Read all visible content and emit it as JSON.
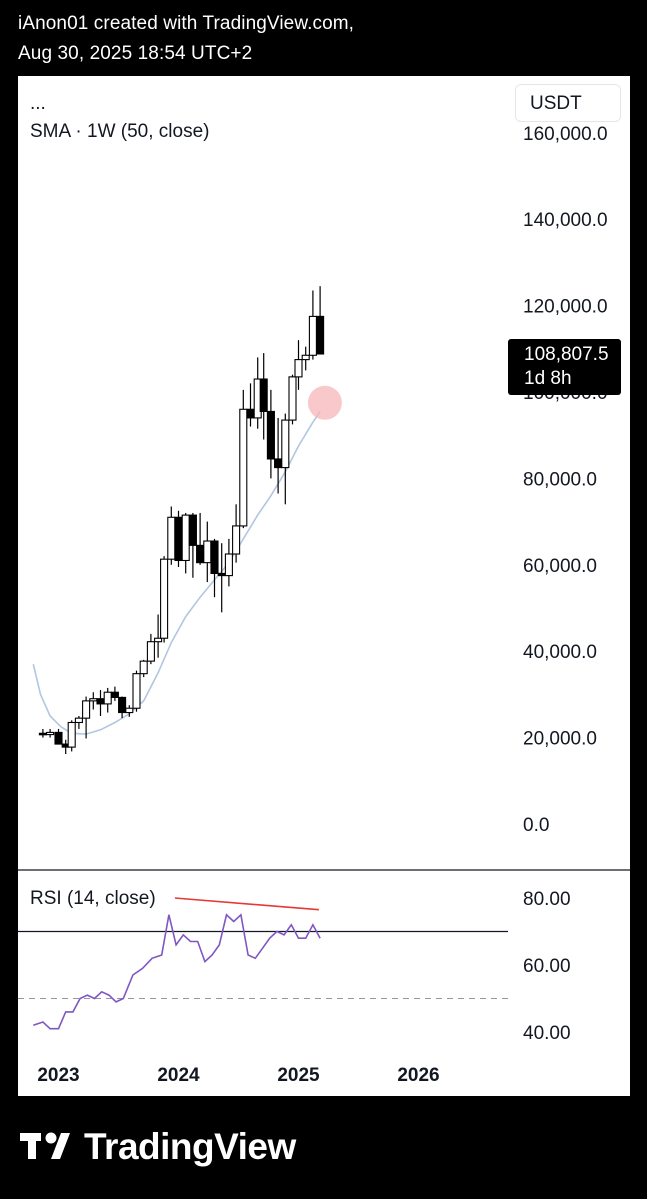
{
  "header": {
    "line1": "iAnon01 created with TradingView.com,",
    "line2": "Aug 30, 2025 18:54 UTC+2"
  },
  "legend": {
    "symbol": "...",
    "sma": "SMA · 1W (50, close)",
    "rsi": "RSI (14, close)"
  },
  "currency_button": "USDT",
  "price_tag": {
    "value": "108,807.5",
    "countdown": "1d 8h"
  },
  "footer": {
    "brand": "TradingView"
  },
  "colors": {
    "sma": "#b2c6e0",
    "rsi": "#7e57c2",
    "divergence": "#e53935",
    "marker": "#f7b6b8",
    "candle": "#000000"
  },
  "chart_data": [
    {
      "type": "candlestick",
      "interval": "1W",
      "xlabels": [
        "2023",
        "2024",
        "2025",
        "2026"
      ],
      "yticks": [
        "0.0",
        "20,000.0",
        "40,000.0",
        "60,000.0",
        "80,000.0",
        "100,000.0",
        "120,000.0",
        "140,000.0",
        "160,000.0"
      ],
      "ylim": [
        0,
        160000
      ],
      "last_price": 108807.5,
      "candles": [
        {
          "t": 2022.87,
          "o": 21000,
          "h": 22000,
          "l": 20000,
          "c": 20700
        },
        {
          "t": 2022.93,
          "o": 20700,
          "h": 22000,
          "l": 20000,
          "c": 21200
        },
        {
          "t": 2023.0,
          "o": 21200,
          "h": 22000,
          "l": 19000,
          "c": 18500
        },
        {
          "t": 2023.06,
          "o": 18500,
          "h": 19500,
          "l": 16200,
          "c": 17800
        },
        {
          "t": 2023.11,
          "o": 17800,
          "h": 24000,
          "l": 16800,
          "c": 23500
        },
        {
          "t": 2023.17,
          "o": 23500,
          "h": 25000,
          "l": 22000,
          "c": 24500
        },
        {
          "t": 2023.23,
          "o": 24500,
          "h": 29500,
          "l": 19800,
          "c": 28500
        },
        {
          "t": 2023.29,
          "o": 28500,
          "h": 30500,
          "l": 26500,
          "c": 29000
        },
        {
          "t": 2023.35,
          "o": 29000,
          "h": 31000,
          "l": 25000,
          "c": 27800
        },
        {
          "t": 2023.41,
          "o": 27800,
          "h": 31500,
          "l": 25800,
          "c": 30500
        },
        {
          "t": 2023.47,
          "o": 30500,
          "h": 31800,
          "l": 28500,
          "c": 29300
        },
        {
          "t": 2023.53,
          "o": 29300,
          "h": 29500,
          "l": 24500,
          "c": 25800
        },
        {
          "t": 2023.59,
          "o": 25800,
          "h": 27500,
          "l": 24800,
          "c": 26800
        },
        {
          "t": 2023.65,
          "o": 26800,
          "h": 35500,
          "l": 26000,
          "c": 34800
        },
        {
          "t": 2023.71,
          "o": 34800,
          "h": 38000,
          "l": 34000,
          "c": 37700
        },
        {
          "t": 2023.77,
          "o": 37700,
          "h": 44000,
          "l": 37000,
          "c": 42200
        },
        {
          "t": 2023.83,
          "o": 42200,
          "h": 48500,
          "l": 38500,
          "c": 43000
        },
        {
          "t": 2023.88,
          "o": 43000,
          "h": 62000,
          "l": 42000,
          "c": 61300
        },
        {
          "t": 2023.94,
          "o": 61300,
          "h": 73500,
          "l": 60000,
          "c": 71000
        },
        {
          "t": 2024.0,
          "o": 71000,
          "h": 72500,
          "l": 59500,
          "c": 61000
        },
        {
          "t": 2024.06,
          "o": 61000,
          "h": 72000,
          "l": 58000,
          "c": 71500
        },
        {
          "t": 2024.12,
          "o": 71500,
          "h": 72000,
          "l": 57000,
          "c": 64500
        },
        {
          "t": 2024.18,
          "o": 64500,
          "h": 72000,
          "l": 60000,
          "c": 60500
        },
        {
          "t": 2024.24,
          "o": 60500,
          "h": 70000,
          "l": 56000,
          "c": 65500
        },
        {
          "t": 2024.3,
          "o": 65500,
          "h": 66000,
          "l": 52500,
          "c": 58000
        },
        {
          "t": 2024.36,
          "o": 58000,
          "h": 65000,
          "l": 49000,
          "c": 57500
        },
        {
          "t": 2024.42,
          "o": 57500,
          "h": 66000,
          "l": 55000,
          "c": 62500
        },
        {
          "t": 2024.48,
          "o": 62500,
          "h": 74000,
          "l": 60500,
          "c": 69000
        },
        {
          "t": 2024.54,
          "o": 69000,
          "h": 100500,
          "l": 68500,
          "c": 96000
        },
        {
          "t": 2024.6,
          "o": 96000,
          "h": 102000,
          "l": 92000,
          "c": 94000
        },
        {
          "t": 2024.66,
          "o": 94000,
          "h": 108000,
          "l": 91500,
          "c": 103000
        },
        {
          "t": 2024.71,
          "o": 103000,
          "h": 109000,
          "l": 89000,
          "c": 95500
        },
        {
          "t": 2024.77,
          "o": 95500,
          "h": 100500,
          "l": 80000,
          "c": 84500
        },
        {
          "t": 2024.83,
          "o": 84500,
          "h": 94000,
          "l": 76500,
          "c": 82500
        },
        {
          "t": 2024.89,
          "o": 82500,
          "h": 95000,
          "l": 74000,
          "c": 93500
        },
        {
          "t": 2024.95,
          "o": 93500,
          "h": 104000,
          "l": 92500,
          "c": 103500
        },
        {
          "t": 2025.0,
          "o": 103500,
          "h": 112000,
          "l": 100500,
          "c": 107500
        },
        {
          "t": 2025.06,
          "o": 107500,
          "h": 110500,
          "l": 105000,
          "c": 108500
        },
        {
          "t": 2025.12,
          "o": 108500,
          "h": 123500,
          "l": 107500,
          "c": 117500
        },
        {
          "t": 2025.18,
          "o": 117500,
          "h": 124500,
          "l": 110000,
          "c": 108800
        }
      ],
      "sma": [
        {
          "t": 2022.79,
          "v": 37000
        },
        {
          "t": 2022.85,
          "v": 30000
        },
        {
          "t": 2022.93,
          "v": 25000
        },
        {
          "t": 2023.02,
          "v": 22500
        },
        {
          "t": 2023.11,
          "v": 21000
        },
        {
          "t": 2023.23,
          "v": 20800
        },
        {
          "t": 2023.35,
          "v": 21800
        },
        {
          "t": 2023.47,
          "v": 23500
        },
        {
          "t": 2023.59,
          "v": 25500
        },
        {
          "t": 2023.71,
          "v": 28500
        },
        {
          "t": 2023.83,
          "v": 35000
        },
        {
          "t": 2023.94,
          "v": 42000
        },
        {
          "t": 2024.06,
          "v": 48000
        },
        {
          "t": 2024.18,
          "v": 52500
        },
        {
          "t": 2024.3,
          "v": 56500
        },
        {
          "t": 2024.42,
          "v": 60500
        },
        {
          "t": 2024.54,
          "v": 66000
        },
        {
          "t": 2024.66,
          "v": 71500
        },
        {
          "t": 2024.77,
          "v": 76000
        },
        {
          "t": 2024.89,
          "v": 81500
        },
        {
          "t": 2025.0,
          "v": 87500
        },
        {
          "t": 2025.12,
          "v": 93000
        },
        {
          "t": 2025.18,
          "v": 95500
        }
      ],
      "marker": {
        "t": 2025.22,
        "v": 97500
      }
    },
    {
      "type": "line",
      "title": "RSI (14, close)",
      "yticks": [
        "40.00",
        "60.00",
        "80.00"
      ],
      "ylim": [
        40,
        80
      ],
      "levels": [
        70,
        50
      ],
      "x": [
        2022.79,
        2022.87,
        2022.93,
        2023.0,
        2023.06,
        2023.12,
        2023.18,
        2023.24,
        2023.3,
        2023.36,
        2023.42,
        2023.48,
        2023.54,
        2023.62,
        2023.7,
        2023.78,
        2023.86,
        2023.92,
        2023.98,
        2024.04,
        2024.1,
        2024.16,
        2024.22,
        2024.28,
        2024.34,
        2024.4,
        2024.46,
        2024.52,
        2024.58,
        2024.64,
        2024.7,
        2024.76,
        2024.82,
        2024.88,
        2024.94,
        2025.0,
        2025.06,
        2025.12,
        2025.18
      ],
      "values": [
        42,
        43,
        41,
        41,
        46,
        46,
        50,
        51,
        50,
        52,
        51,
        49,
        50,
        57,
        59,
        62,
        63,
        75,
        66,
        69,
        67,
        67,
        61,
        63,
        66,
        75,
        73,
        75,
        63,
        62,
        65,
        68,
        70,
        69,
        72,
        68,
        68,
        72,
        68
      ],
      "divergence": [
        {
          "t": 2023.97,
          "v": 80
        },
        {
          "t": 2025.17,
          "v": 76.5
        }
      ]
    }
  ]
}
